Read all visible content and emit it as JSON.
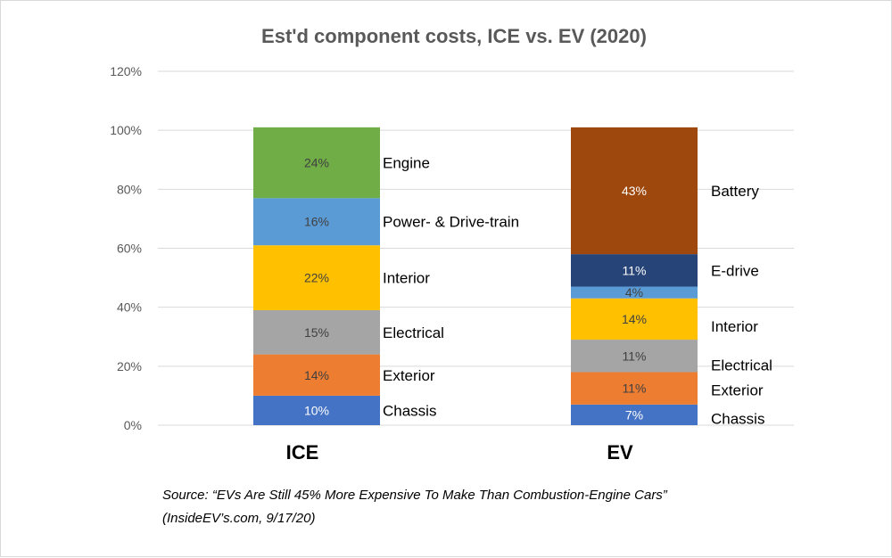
{
  "chart_data": {
    "type": "bar",
    "stacked": true,
    "title": "Est'd component costs, ICE vs. EV (2020)",
    "ylim": [
      0,
      120
    ],
    "yticks": [
      0,
      20,
      40,
      60,
      80,
      100,
      120
    ],
    "ytick_labels": [
      "0%",
      "20%",
      "40%",
      "60%",
      "80%",
      "100%",
      "120%"
    ],
    "grid": true,
    "categories": [
      "ICE",
      "EV"
    ],
    "bars": [
      {
        "category": "ICE",
        "segments": [
          {
            "name": "Chassis",
            "value": 10,
            "label": "10%",
            "color": "#4472C4",
            "label_color": "#ffffff"
          },
          {
            "name": "Exterior",
            "value": 14,
            "label": "14%",
            "color": "#ED7D31",
            "label_color": "#404040"
          },
          {
            "name": "Electrical",
            "value": 15,
            "label": "15%",
            "color": "#A5A5A5",
            "label_color": "#404040"
          },
          {
            "name": "Interior",
            "value": 22,
            "label": "22%",
            "color": "#FFC000",
            "label_color": "#404040"
          },
          {
            "name": "Power- & Drive-train",
            "value": 16,
            "label": "16%",
            "color": "#5B9BD5",
            "label_color": "#404040"
          },
          {
            "name": "Engine",
            "value": 24,
            "label": "24%",
            "color": "#70AD47",
            "label_color": "#404040"
          }
        ]
      },
      {
        "category": "EV",
        "segments": [
          {
            "name": "Chassis",
            "value": 7,
            "label": "7%",
            "color": "#4472C4",
            "label_color": "#ffffff"
          },
          {
            "name": "Exterior",
            "value": 11,
            "label": "11%",
            "color": "#ED7D31",
            "label_color": "#404040"
          },
          {
            "name": "Electrical",
            "value": 11,
            "label": "11%",
            "color": "#A5A5A5",
            "label_color": "#404040"
          },
          {
            "name": "Interior",
            "value": 14,
            "label": "14%",
            "color": "#FFC000",
            "label_color": "#404040"
          },
          {
            "name": "",
            "value": 4,
            "label": "4%",
            "color": "#5B9BD5",
            "label_color": "#404040"
          },
          {
            "name": "E-drive",
            "value": 11,
            "label": "11%",
            "color": "#264478",
            "label_color": "#ffffff"
          },
          {
            "name": "Battery",
            "value": 43,
            "label": "43%",
            "color": "#9E480E",
            "label_color": "#ffffff"
          }
        ]
      }
    ]
  },
  "source_line1": "Source: “EVs Are Still 45% More Expensive To Make Than Combustion-Engine Cars”",
  "source_line2": "(InsideEV’s.com, 9/17/20)"
}
